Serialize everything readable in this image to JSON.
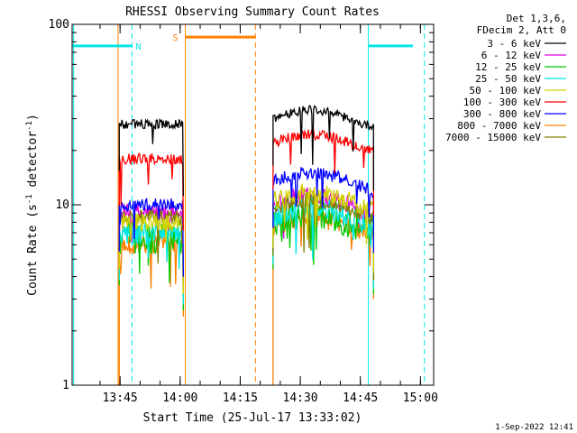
{
  "chart_data": {
    "type": "line",
    "title": "RHESSI Observing Summary Count Rates",
    "xlabel": "Start Time (25-Jul-17 13:33:02)",
    "ylabel": "Count Rate (s",
    "ylabel_sup1": "-1",
    "ylabel_mid": " detector",
    "ylabel_sup2": "-1",
    "ylabel_end": ")",
    "y_scale": "log",
    "ylim": [
      1,
      100
    ],
    "xlim_minutes": [
      33.03,
      120.0
    ],
    "x_ticks": [
      {
        "minute": 45,
        "label": "13:45"
      },
      {
        "minute": 60,
        "label": "14:00"
      },
      {
        "minute": 75,
        "label": "14:15"
      },
      {
        "minute": 90,
        "label": "14:30"
      },
      {
        "minute": 105,
        "label": "14:45"
      },
      {
        "minute": 120,
        "label": "15:00"
      }
    ],
    "y_ticks": [
      {
        "value": 1,
        "label": "1"
      },
      {
        "value": 10,
        "label": "10"
      },
      {
        "value": 100,
        "label": "100"
      }
    ],
    "legend_header": [
      "Det 1,3,6,",
      "FDecim 2, Att 0"
    ],
    "legend_placement": "top-right",
    "series": [
      {
        "name": "3 - 6 keV",
        "color": "#000000",
        "seg1": 28,
        "seg2": 30,
        "noise": 0.06
      },
      {
        "name": "6 - 12 keV",
        "color": "#e000e0",
        "seg1": 9,
        "seg2": 10,
        "noise": 0.12
      },
      {
        "name": "12 - 25 keV",
        "color": "#00c800",
        "seg1": 6.5,
        "seg2": 8,
        "noise": 0.2
      },
      {
        "name": "25 - 50 keV",
        "color": "#00e6e6",
        "seg1": 7,
        "seg2": 8.5,
        "noise": 0.15
      },
      {
        "name": "50 - 100 keV",
        "color": "#d2d200",
        "seg1": 8,
        "seg2": 10.5,
        "noise": 0.12
      },
      {
        "name": "100 - 300 keV",
        "color": "#ff0000",
        "seg1": 18,
        "seg2": 22,
        "noise": 0.07
      },
      {
        "name": "300 - 800 keV",
        "color": "#0000ff",
        "seg1": 10,
        "seg2": 13.5,
        "noise": 0.08
      },
      {
        "name": "800 - 7000 keV",
        "color": "#ff8000",
        "seg1": 6,
        "seg2": 7.5,
        "noise": 0.12
      },
      {
        "name": "7000 - 15000 keV",
        "color": "#808000",
        "seg1": 8.5,
        "seg2": 9.5,
        "noise": 0.1
      }
    ],
    "data_segments": [
      {
        "start": 44.8,
        "end": 60.8
      },
      {
        "start": 83.2,
        "end": 108.3
      }
    ],
    "flags": [
      {
        "label": "N",
        "color": "#00e6e6",
        "bars": [
          [
            33.03,
            48.0
          ],
          [
            107.0,
            121.0
          ]
        ],
        "level": 76
      },
      {
        "label": "S",
        "color": "#ff8000",
        "bars": [
          [
            61.3,
            78.8
          ]
        ],
        "level": 85
      }
    ],
    "vlines": [
      {
        "minute": 33.4,
        "color": "#00e6e6",
        "dash": false
      },
      {
        "minute": 48.0,
        "color": "#00e6e6",
        "dash": true
      },
      {
        "minute": 44.5,
        "color": "#ff8000",
        "dash": false
      },
      {
        "minute": 61.3,
        "color": "#ff8000",
        "dash": false
      },
      {
        "minute": 78.8,
        "color": "#ff8000",
        "dash": true
      },
      {
        "minute": 107.0,
        "color": "#00e6e6",
        "dash": false
      },
      {
        "minute": 121.0,
        "color": "#00e6e6",
        "dash": true
      }
    ],
    "grid": false
  },
  "footer": {
    "timestamp": "1-Sep-2022 12:41"
  }
}
